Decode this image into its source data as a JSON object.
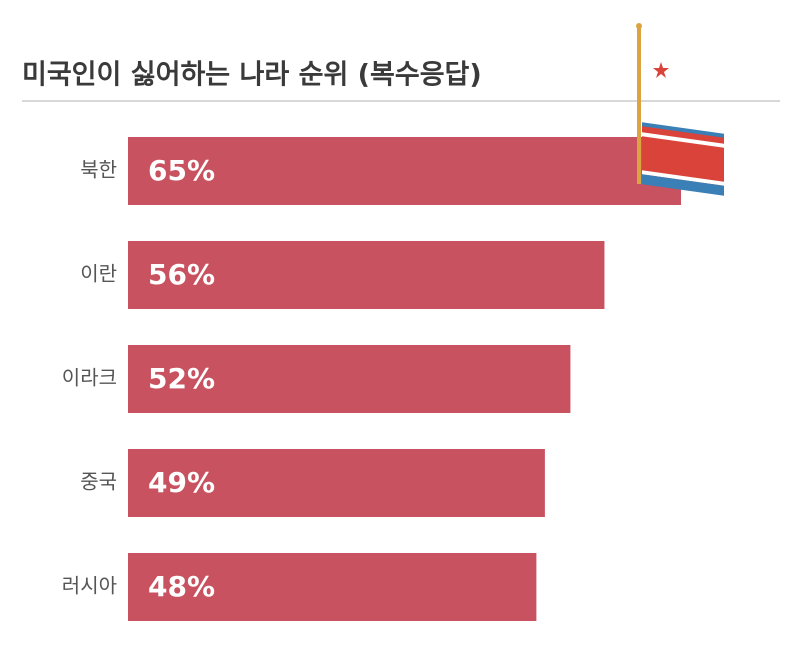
{
  "chart_data": {
    "type": "bar",
    "orientation": "horizontal",
    "title": "미국인이 싫어하는 나라 순위 (복수응답)",
    "categories": [
      "북한",
      "이란",
      "이라크",
      "중국",
      "러시아"
    ],
    "values": [
      65,
      56,
      52,
      49,
      48
    ],
    "value_labels": [
      "65%",
      "56%",
      "52%",
      "49%",
      "48%"
    ],
    "color": "#c8525f"
  }
}
